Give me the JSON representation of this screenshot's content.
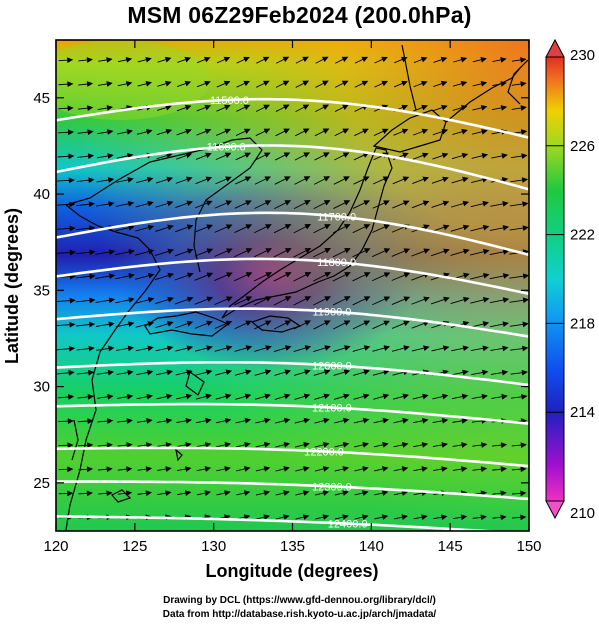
{
  "title": "MSM 06Z29Feb2024 (200.0hPa)",
  "axes": {
    "xlabel": "Longitude (degrees)",
    "ylabel": "Latitude  (degrees)",
    "xlim": [
      120,
      150
    ],
    "ylim": [
      22.5,
      48
    ],
    "xticks": [
      "120",
      "125",
      "130",
      "135",
      "140",
      "145",
      "150"
    ],
    "yticks": [
      "25",
      "30",
      "35",
      "40",
      "45"
    ]
  },
  "colorbar": {
    "min": 210,
    "max": 230,
    "ticks": [
      "210",
      "214",
      "218",
      "222",
      "226",
      "230"
    ]
  },
  "contour_labels": [
    "11500.0",
    "11600.0",
    "11700.0",
    "11800.0",
    "11900.0",
    "12000.0",
    "12100.0",
    "12200.0",
    "12300.0",
    "12400.0"
  ],
  "credits": [
    "Drawing by DCL (https://www.gfd-dennou.org/library/dcl/)",
    "Data from http://database.rish.kyoto-u.ac.jp/arch/jmadata/"
  ],
  "colors": {
    "wind_vector": "#000000",
    "contour": "#ffffff",
    "coastline": "#000000"
  }
}
